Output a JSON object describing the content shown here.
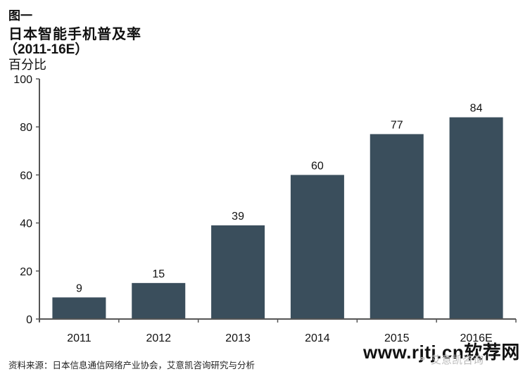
{
  "header": {
    "figure_label": "图一",
    "title": "日本智能手机普及率",
    "subtitle": "（2011-16E）",
    "unit": "百分比"
  },
  "footer": {
    "source": "资料来源：日本信息通信网络产业协会，艾意凯咨询研究与分析"
  },
  "watermark": {
    "site": "www.rjtj.cn软荐网",
    "brand": "艾意凯咨询",
    "icon": "wechat-icon"
  },
  "colors": {
    "bar": "#3a4e5c",
    "axis": "#555555"
  },
  "chart_data": {
    "type": "bar",
    "title": "日本智能手机普及率（2011-16E）",
    "xlabel": "",
    "ylabel": "百分比",
    "categories": [
      "2011",
      "2012",
      "2013",
      "2014",
      "2015",
      "2016E"
    ],
    "values": [
      9,
      15,
      39,
      60,
      77,
      84
    ],
    "data_labels": [
      "9",
      "15",
      "39",
      "60",
      "77",
      "84"
    ],
    "ylim": [
      0,
      100
    ],
    "yticks": [
      0,
      20,
      40,
      60,
      80,
      100
    ],
    "grid": false,
    "legend": null
  }
}
